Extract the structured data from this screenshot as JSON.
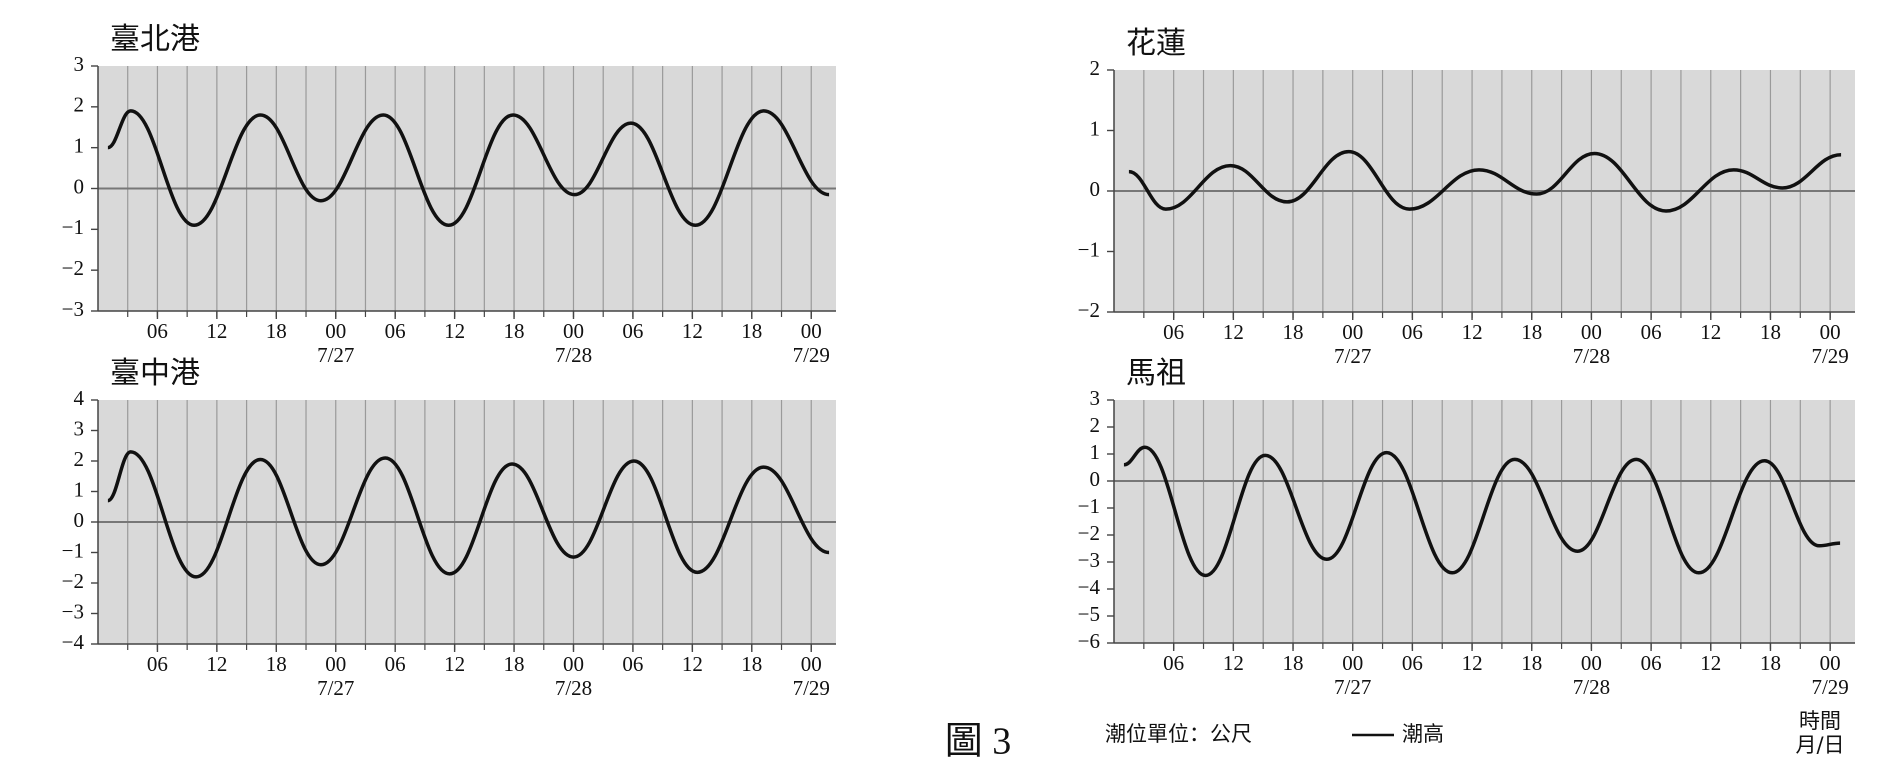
{
  "chart_data": [
    {
      "type": "line",
      "title": "臺北港",
      "x": [
        1,
        3.3,
        9.7,
        16.4,
        22.5,
        28.8,
        35.4,
        41.9,
        48.1,
        53.8,
        60.3,
        67.2,
        73.8
      ],
      "series": [
        {
          "color": "#111111",
          "values": [
            1.0,
            1.9,
            -0.9,
            1.8,
            -0.3,
            1.8,
            -0.9,
            1.8,
            -0.15,
            1.6,
            -0.9,
            1.9,
            -0.15
          ]
        }
      ],
      "xlim": [
        0,
        74.5
      ],
      "ylim": [
        -3,
        3
      ],
      "yticks": [
        {
          "value": -3,
          "label": "−3"
        },
        {
          "value": -2,
          "label": "−2"
        },
        {
          "value": -1,
          "label": "−1"
        },
        0,
        1,
        2,
        3
      ],
      "xticks": [
        {
          "value": 6,
          "label": "06"
        },
        {
          "value": 12,
          "label": "12"
        },
        {
          "value": 18,
          "label": "18"
        },
        {
          "value": 24,
          "label": "00",
          "date": "7/27"
        },
        {
          "value": 30,
          "label": "06"
        },
        {
          "value": 36,
          "label": "12"
        },
        {
          "value": 42,
          "label": "18"
        },
        {
          "value": 48,
          "label": "00",
          "date": "7/28"
        },
        {
          "value": 54,
          "label": "06"
        },
        {
          "value": 60,
          "label": "12"
        },
        {
          "value": 66,
          "label": "18"
        },
        {
          "value": 72,
          "label": "00",
          "date": "7/29"
        }
      ],
      "grid": true,
      "zero_line": true,
      "background": "#d9d9d9"
    },
    {
      "type": "line",
      "title": "花蓮",
      "x": [
        1.5,
        5.2,
        11.7,
        17.4,
        23.6,
        29.7,
        36.7,
        42.5,
        48.3,
        55.5,
        62.3,
        67.2,
        73.1
      ],
      "series": [
        {
          "color": "#111111",
          "values": [
            0.32,
            -0.3,
            0.42,
            -0.18,
            0.65,
            -0.3,
            0.35,
            -0.05,
            0.62,
            -0.33,
            0.35,
            0.05,
            0.6
          ]
        }
      ],
      "xlim": [
        0,
        74.5
      ],
      "ylim": [
        -2,
        2
      ],
      "yticks": [
        {
          "value": -2,
          "label": "−2"
        },
        {
          "value": -1,
          "label": "−1"
        },
        0,
        1,
        2
      ],
      "xticks": [
        {
          "value": 6,
          "label": "06"
        },
        {
          "value": 12,
          "label": "12"
        },
        {
          "value": 18,
          "label": "18"
        },
        {
          "value": 24,
          "label": "00",
          "date": "7/27"
        },
        {
          "value": 30,
          "label": "06"
        },
        {
          "value": 36,
          "label": "12"
        },
        {
          "value": 42,
          "label": "18"
        },
        {
          "value": 48,
          "label": "00",
          "date": "7/28"
        },
        {
          "value": 54,
          "label": "06"
        },
        {
          "value": 60,
          "label": "12"
        },
        {
          "value": 66,
          "label": "18"
        },
        {
          "value": 72,
          "label": "00",
          "date": "7/29"
        }
      ],
      "grid": true,
      "zero_line": true,
      "background": "#d9d9d9"
    },
    {
      "type": "line",
      "title": "臺中港",
      "x": [
        1,
        3.3,
        9.9,
        16.4,
        22.5,
        29,
        35.5,
        41.8,
        48,
        54.1,
        60.5,
        67.2,
        73.8
      ],
      "series": [
        {
          "color": "#111111",
          "values": [
            0.7,
            2.3,
            -1.8,
            2.05,
            -1.4,
            2.1,
            -1.7,
            1.9,
            -1.15,
            2.0,
            -1.65,
            1.8,
            -1.0
          ]
        }
      ],
      "xlim": [
        0,
        74.5
      ],
      "ylim": [
        -4,
        4
      ],
      "yticks": [
        {
          "value": -4,
          "label": "−4"
        },
        {
          "value": -3,
          "label": "−3"
        },
        {
          "value": -2,
          "label": "−2"
        },
        {
          "value": -1,
          "label": "−1"
        },
        0,
        1,
        2,
        3,
        4
      ],
      "xticks": [
        {
          "value": 6,
          "label": "06"
        },
        {
          "value": 12,
          "label": "12"
        },
        {
          "value": 18,
          "label": "18"
        },
        {
          "value": 24,
          "label": "00",
          "date": "7/27"
        },
        {
          "value": 30,
          "label": "06"
        },
        {
          "value": 36,
          "label": "12"
        },
        {
          "value": 42,
          "label": "18"
        },
        {
          "value": 48,
          "label": "00",
          "date": "7/28"
        },
        {
          "value": 54,
          "label": "06"
        },
        {
          "value": 60,
          "label": "12"
        },
        {
          "value": 66,
          "label": "18"
        },
        {
          "value": 72,
          "label": "00",
          "date": "7/29"
        }
      ],
      "grid": true,
      "zero_line": true,
      "background": "#d9d9d9"
    },
    {
      "type": "line",
      "title": "馬祖",
      "x": [
        1,
        3.1,
        9.2,
        15.2,
        21.4,
        27.4,
        34,
        40.3,
        46.6,
        52.5,
        58.8,
        65.4,
        70.9,
        73
      ],
      "series": [
        {
          "color": "#111111",
          "values": [
            0.6,
            1.25,
            -3.5,
            0.95,
            -2.9,
            1.05,
            -3.4,
            0.8,
            -2.6,
            0.8,
            -3.4,
            0.75,
            -2.4,
            -2.3
          ]
        }
      ],
      "xlim": [
        0,
        74.5
      ],
      "ylim": [
        -6,
        3
      ],
      "yticks": [
        {
          "value": -6,
          "label": "−6"
        },
        {
          "value": -5,
          "label": "−5"
        },
        {
          "value": -4,
          "label": "−4"
        },
        {
          "value": -3,
          "label": "−3"
        },
        {
          "value": -2,
          "label": "−2"
        },
        {
          "value": -1,
          "label": "−1"
        },
        0,
        1,
        2,
        3
      ],
      "xticks": [
        {
          "value": 6,
          "label": "06"
        },
        {
          "value": 12,
          "label": "12"
        },
        {
          "value": 18,
          "label": "18"
        },
        {
          "value": 24,
          "label": "00",
          "date": "7/27"
        },
        {
          "value": 30,
          "label": "06"
        },
        {
          "value": 36,
          "label": "12"
        },
        {
          "value": 42,
          "label": "18"
        },
        {
          "value": 48,
          "label": "00",
          "date": "7/28"
        },
        {
          "value": 54,
          "label": "06"
        },
        {
          "value": 60,
          "label": "12"
        },
        {
          "value": 66,
          "label": "18"
        },
        {
          "value": 72,
          "label": "00",
          "date": "7/29"
        }
      ],
      "grid": true,
      "zero_line": true,
      "background": "#d9d9d9"
    }
  ],
  "unit_note": "潮位單位：公尺",
  "legend": {
    "label": "潮高",
    "color": "#111111"
  },
  "time_label": "時間",
  "date_label": "月/日",
  "caption": "圖 3"
}
